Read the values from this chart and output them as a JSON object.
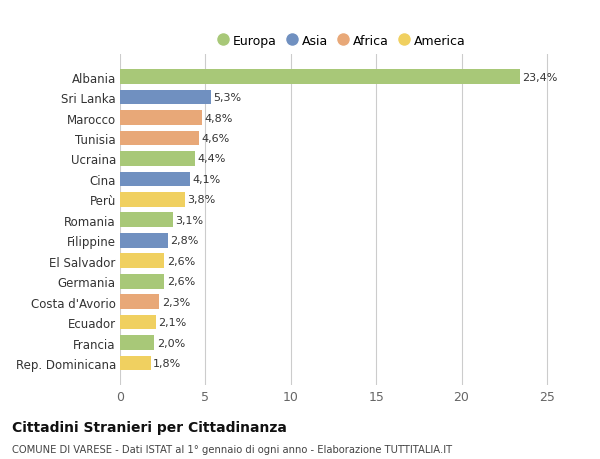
{
  "countries": [
    "Rep. Dominicana",
    "Francia",
    "Ecuador",
    "Costa d'Avorio",
    "Germania",
    "El Salvador",
    "Filippine",
    "Romania",
    "Perù",
    "Cina",
    "Ucraina",
    "Tunisia",
    "Marocco",
    "Sri Lanka",
    "Albania"
  ],
  "values": [
    1.8,
    2.0,
    2.1,
    2.3,
    2.6,
    2.6,
    2.8,
    3.1,
    3.8,
    4.1,
    4.4,
    4.6,
    4.8,
    5.3,
    23.4
  ],
  "labels": [
    "1,8%",
    "2,0%",
    "2,1%",
    "2,3%",
    "2,6%",
    "2,6%",
    "2,8%",
    "3,1%",
    "3,8%",
    "4,1%",
    "4,4%",
    "4,6%",
    "4,8%",
    "5,3%",
    "23,4%"
  ],
  "colors": [
    "#f0d060",
    "#a8c878",
    "#f0d060",
    "#e8a878",
    "#a8c878",
    "#f0d060",
    "#7090c0",
    "#a8c878",
    "#f0d060",
    "#7090c0",
    "#a8c878",
    "#e8a878",
    "#e8a878",
    "#7090c0",
    "#a8c878"
  ],
  "legend": [
    {
      "label": "Europa",
      "color": "#a8c878"
    },
    {
      "label": "Asia",
      "color": "#7090c0"
    },
    {
      "label": "Africa",
      "color": "#e8a878"
    },
    {
      "label": "America",
      "color": "#f0d060"
    }
  ],
  "title1": "Cittadini Stranieri per Cittadinanza",
  "title2": "COMUNE DI VARESE - Dati ISTAT al 1° gennaio di ogni anno - Elaborazione TUTTITALIA.IT",
  "xlim": [
    0,
    26
  ],
  "xticks": [
    0,
    5,
    10,
    15,
    20,
    25
  ],
  "background_color": "#ffffff",
  "bar_height": 0.72,
  "grid_color": "#cccccc"
}
